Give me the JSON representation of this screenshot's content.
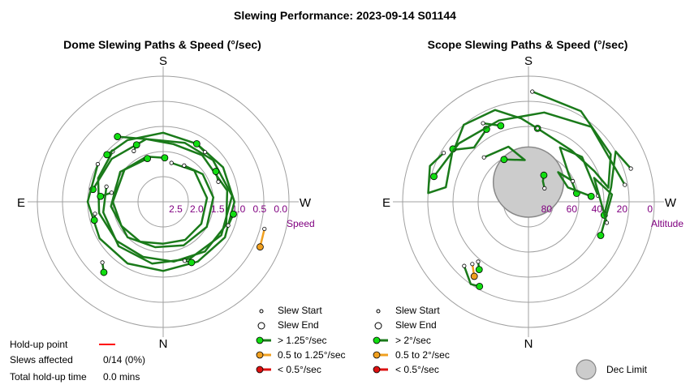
{
  "title": "Slewing Performance: 2023-09-14 S01144",
  "colors": {
    "fast": "#1a7a1a",
    "fast_marker": "#11dd11",
    "medium": "#f0a020",
    "medium_marker": "#f0a020",
    "slow": "#dd1111",
    "slow_marker": "#dd1111",
    "grid": "#a0a0a0",
    "label": "#800080",
    "holdup": "#ff0000",
    "dec_limit": "#cccccc"
  },
  "stats": {
    "holdup_label": "Hold-up point",
    "affected_label": "Slews affected",
    "affected_value": "0/14 (0%)",
    "total_label": "Total hold-up time",
    "total_value": "0.0 mins"
  },
  "chart_data": [
    {
      "type": "polar",
      "title": "Dome Slewing Paths & Speed (°/sec)",
      "directions": {
        "top": "S",
        "bottom": "N",
        "left": "E",
        "right": "W"
      },
      "radial_axis_label": "Speed",
      "radial_ticks": [
        "2.5",
        "2.0",
        "1.5",
        "1.0",
        "0.5",
        "0.0"
      ],
      "radial_range": [
        3.0,
        0.0
      ],
      "legend": {
        "start": "Slew Start",
        "end": "Slew End",
        "fast": "> 1.25°/sec",
        "medium": "0.5 to 1.25°/sec",
        "slow": "< 0.5°/sec"
      },
      "slews": [
        {
          "speed": "fast",
          "start": [
            168,
            2.05
          ],
          "end": [
            178,
            1.95
          ],
          "path": [
            [
              168,
              2.05
            ],
            [
              135,
              1.95
            ],
            [
              95,
              1.95
            ],
            [
              60,
              1.95
            ],
            [
              30,
              1.95
            ],
            [
              0,
              2.0
            ],
            [
              -30,
              1.9
            ],
            [
              -60,
              1.85
            ],
            [
              -90,
              1.8
            ],
            [
              -130,
              1.8
            ],
            [
              -160,
              1.85
            ],
            [
              178,
              1.95
            ]
          ]
        },
        {
          "speed": "fast",
          "start": [
            150,
            2.0
          ],
          "end": [
            -160,
            1.9
          ],
          "path": [
            [
              150,
              2.0
            ],
            [
              125,
              1.85
            ],
            [
              95,
              1.8
            ],
            [
              60,
              1.8
            ],
            [
              25,
              1.85
            ],
            [
              -10,
              1.9
            ],
            [
              -45,
              1.8
            ],
            [
              -85,
              1.75
            ],
            [
              -125,
              1.75
            ],
            [
              -160,
              1.9
            ]
          ]
        },
        {
          "speed": "fast",
          "start": [
            -135,
            1.3
          ],
          "end": [
            -145,
            1.1
          ],
          "path": [
            [
              -135,
              1.3
            ],
            [
              -110,
              1.35
            ],
            [
              -80,
              1.45
            ],
            [
              -50,
              1.55
            ],
            [
              -20,
              1.6
            ],
            [
              10,
              1.55
            ],
            [
              40,
              1.45
            ],
            [
              70,
              1.4
            ],
            [
              100,
              1.45
            ],
            [
              140,
              1.55
            ],
            [
              170,
              1.6
            ],
            [
              -165,
              1.45
            ],
            [
              -145,
              1.1
            ]
          ]
        },
        {
          "speed": "fast",
          "start": [
            -105,
            1.6
          ],
          "end": [
            -100,
            1.3
          ],
          "path": [
            [
              -105,
              1.6
            ],
            [
              -80,
              1.55
            ],
            [
              -45,
              1.5
            ],
            [
              -10,
              1.5
            ],
            [
              25,
              1.5
            ],
            [
              60,
              1.4
            ],
            [
              95,
              1.35
            ],
            [
              130,
              1.45
            ],
            [
              160,
              1.5
            ],
            [
              -165,
              1.45
            ],
            [
              -130,
              1.4
            ],
            [
              -100,
              1.3
            ]
          ]
        },
        {
          "speed": "fast",
          "start": [
            -120,
            1.2
          ],
          "end": [
            -130,
            1.25
          ],
          "path": [
            [
              -120,
              1.2
            ],
            [
              -90,
              1.2
            ],
            [
              -60,
              1.25
            ],
            [
              -30,
              1.3
            ],
            [
              0,
              1.35
            ],
            [
              30,
              1.35
            ],
            [
              60,
              1.3
            ],
            [
              90,
              1.3
            ],
            [
              120,
              1.35
            ],
            [
              150,
              1.4
            ],
            [
              180,
              1.35
            ],
            [
              -150,
              1.3
            ],
            [
              -130,
              1.25
            ]
          ]
        },
        {
          "speed": "fast",
          "start": [
            -45,
            0.95
          ],
          "end": [
            -40,
            0.8
          ],
          "path": [
            [
              -45,
              0.95
            ],
            [
              -40,
              0.8
            ]
          ]
        },
        {
          "speed": "fast",
          "start": [
            -100,
            1.75
          ],
          "end": [
            -95,
            1.5
          ],
          "path": [
            [
              -100,
              1.75
            ],
            [
              -95,
              1.5
            ]
          ]
        },
        {
          "speed": "fast",
          "start": [
            70,
            1.35
          ],
          "end": [
            80,
            1.3
          ],
          "path": [
            [
              70,
              1.35
            ],
            [
              80,
              1.3
            ]
          ]
        },
        {
          "speed": "fast",
          "start": [
            110,
            1.6
          ],
          "end": [
            120,
            1.55
          ],
          "path": [
            [
              110,
              1.6
            ],
            [
              120,
              1.55
            ]
          ]
        },
        {
          "speed": "medium",
          "start": [
            75,
            0.5
          ],
          "end": [
            65,
            0.45
          ],
          "path": [
            [
              75,
              0.5
            ],
            [
              65,
              0.45
            ]
          ]
        },
        {
          "speed": "fast",
          "start": [
            -80,
            1.35
          ],
          "end": [
            -75,
            1.3
          ],
          "path": [
            [
              -80,
              1.35
            ],
            [
              -75,
              1.3
            ]
          ]
        },
        {
          "speed": "fast",
          "start": [
            140,
            1.45
          ],
          "end": [
            150,
            1.4
          ],
          "path": [
            [
              140,
              1.45
            ],
            [
              150,
              1.4
            ]
          ]
        },
        {
          "speed": "fast",
          "start": [
            -150,
            1.6
          ],
          "end": [
            -155,
            1.5
          ],
          "path": [
            [
              -150,
              1.6
            ],
            [
              -155,
              1.5
            ]
          ]
        },
        {
          "speed": "fast",
          "start": [
            20,
            1.5
          ],
          "end": [
            25,
            1.4
          ],
          "path": [
            [
              20,
              1.5
            ],
            [
              25,
              1.4
            ]
          ]
        }
      ]
    },
    {
      "type": "polar",
      "title": "Scope Slewing Paths & Speed (°/sec)",
      "directions": {
        "top": "S",
        "bottom": "N",
        "left": "E",
        "right": "W"
      },
      "radial_axis_label": "Altitude",
      "radial_ticks": [
        "80",
        "60",
        "40",
        "20",
        "0"
      ],
      "radial_range": [
        90,
        0
      ],
      "dec_limit": {
        "label": "Dec Limit",
        "center": [
          180,
          73
        ],
        "radius_deg": 17
      },
      "legend": {
        "start": "Slew Start",
        "end": "Slew End",
        "fast": "> 2°/sec",
        "medium": "0.5 to 2°/sec",
        "slow": "< 0.5°/sec"
      },
      "slews": [
        {
          "speed": "fast",
          "start": [
            178,
            11
          ],
          "end": [
            173,
            37
          ],
          "path": [
            [
              178,
              11
            ],
            [
              150,
              15
            ],
            [
              120,
              22
            ],
            [
              100,
              32
            ],
            [
              115,
              38
            ],
            [
              140,
              42
            ],
            [
              173,
              37
            ]
          ]
        },
        {
          "speed": "fast",
          "start": [
            173,
            37
          ],
          "end": [
            -150,
            30
          ],
          "path": [
            [
              173,
              37
            ],
            [
              -175,
              30
            ],
            [
              -160,
              20
            ],
            [
              -140,
              18
            ],
            [
              -125,
              25
            ],
            [
              -135,
              35
            ],
            [
              -150,
              30
            ]
          ]
        },
        {
          "speed": "fast",
          "start": [
            -120,
            20
          ],
          "end": [
            -125,
            24
          ],
          "path": [
            [
              -120,
              20
            ],
            [
              -110,
              15
            ],
            [
              -95,
              18
            ],
            [
              -100,
              30
            ],
            [
              -125,
              24
            ]
          ]
        },
        {
          "speed": "fast",
          "start": [
            108,
            13
          ],
          "end": [
            80,
            35
          ],
          "path": [
            [
              108,
              13
            ],
            [
              120,
              18
            ],
            [
              100,
              30
            ],
            [
              80,
              35
            ]
          ]
        },
        {
          "speed": "fast",
          "start": [
            95,
            40
          ],
          "end": [
            100,
            55
          ],
          "path": [
            [
              95,
              40
            ],
            [
              130,
              40
            ],
            [
              150,
              45
            ],
            [
              125,
              55
            ],
            [
              100,
              55
            ]
          ]
        },
        {
          "speed": "fast",
          "start": [
            -45,
            25
          ],
          "end": [
            -30,
            20
          ],
          "path": [
            [
              -45,
              25
            ],
            [
              -35,
              18
            ],
            [
              -30,
              20
            ]
          ]
        },
        {
          "speed": "fast",
          "start": [
            -40,
            34
          ],
          "end": [
            -36,
            30
          ],
          "path": [
            [
              -40,
              34
            ],
            [
              -36,
              30
            ]
          ]
        },
        {
          "speed": "medium",
          "start": [
            -42,
            30
          ],
          "end": [
            -36,
            24
          ],
          "path": [
            [
              -42,
              30
            ],
            [
              -36,
              24
            ]
          ]
        },
        {
          "speed": "fast",
          "start": [
            -135,
            45
          ],
          "end": [
            -150,
            55
          ],
          "path": [
            [
              -135,
              45
            ],
            [
              -160,
              48
            ],
            [
              -175,
              60
            ],
            [
              -150,
              55
            ]
          ]
        },
        {
          "speed": "fast",
          "start": [
            100,
            20
          ],
          "end": [
            -105,
            20
          ],
          "path": [
            [
              100,
              20
            ],
            [
              140,
              20
            ],
            [
              170,
              25
            ],
            [
              -160,
              28
            ],
            [
              -130,
              25
            ],
            [
              -105,
              20
            ]
          ]
        },
        {
          "speed": "fast",
          "start": [
            115,
            55
          ],
          "end": [
            95,
            45
          ],
          "path": [
            [
              115,
              55
            ],
            [
              135,
              60
            ],
            [
              110,
              60
            ],
            [
              95,
              45
            ]
          ]
        },
        {
          "speed": "fast",
          "start": [
            75,
            32
          ],
          "end": [
            65,
            33
          ],
          "path": [
            [
              75,
              32
            ],
            [
              110,
              40
            ],
            [
              95,
              30
            ],
            [
              65,
              33
            ]
          ]
        },
        {
          "speed": "fast",
          "start": [
            130,
            75
          ],
          "end": [
            150,
            68
          ],
          "path": [
            [
              130,
              75
            ],
            [
              145,
              72
            ],
            [
              150,
              68
            ]
          ]
        },
        {
          "speed": "fast",
          "start": [
            -150,
            25
          ],
          "end": [
            -160,
            32
          ],
          "path": [
            [
              -150,
              25
            ],
            [
              -160,
              32
            ]
          ]
        }
      ]
    }
  ]
}
